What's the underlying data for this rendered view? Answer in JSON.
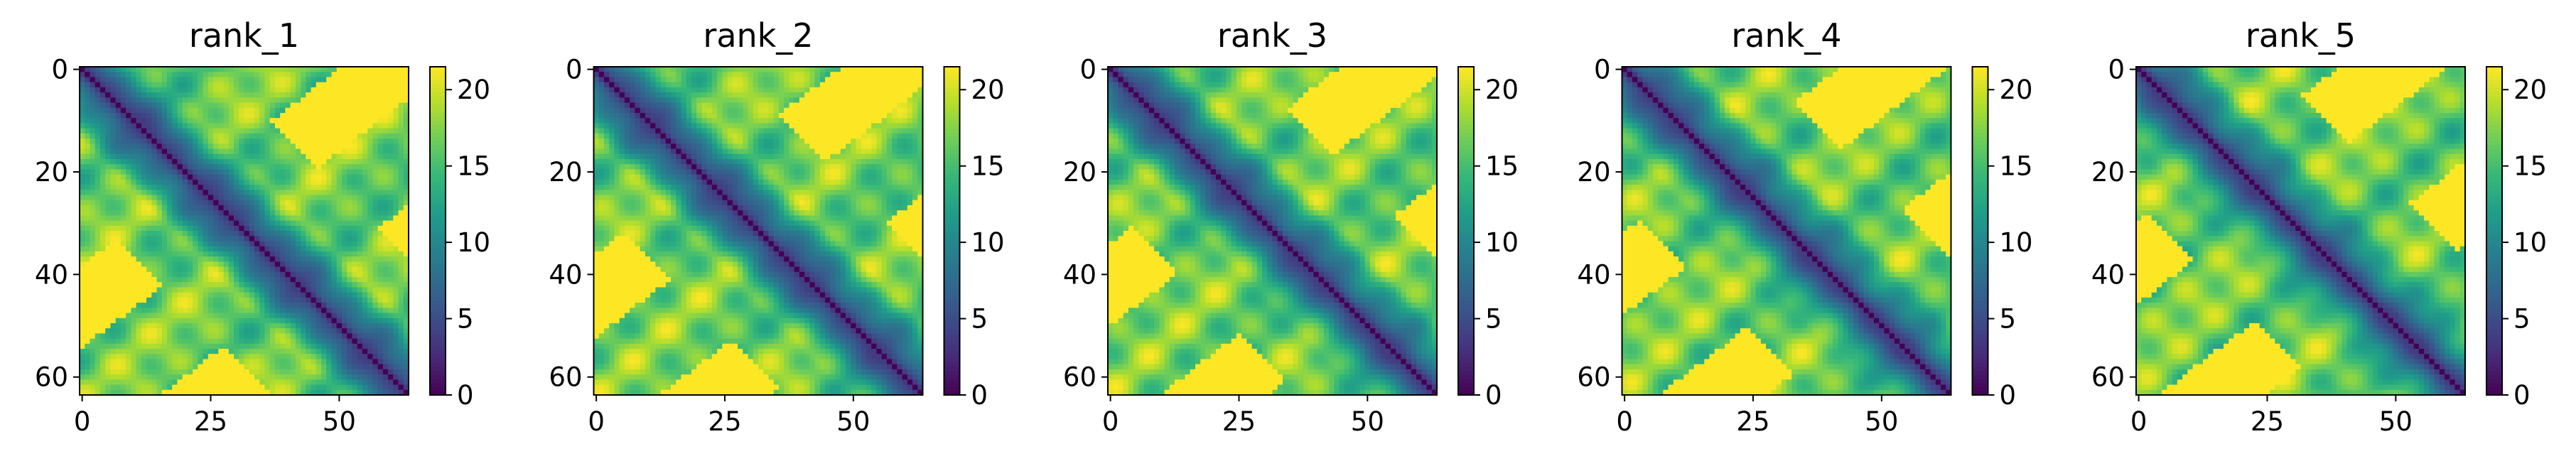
{
  "chart_data": [
    {
      "type": "heatmap",
      "title": "rank_1",
      "matrix_size": 64,
      "x_ticks": [
        "0",
        "25",
        "50"
      ],
      "y_ticks": [
        "0",
        "20",
        "40",
        "60"
      ],
      "colorbar": {
        "colormap": "viridis",
        "range": [
          0,
          21.5
        ],
        "ticks": [
          "0",
          "5",
          "10",
          "15",
          "20"
        ]
      }
    },
    {
      "type": "heatmap",
      "title": "rank_2",
      "matrix_size": 64,
      "x_ticks": [
        "0",
        "25",
        "50"
      ],
      "y_ticks": [
        "0",
        "20",
        "40",
        "60"
      ],
      "colorbar": {
        "colormap": "viridis",
        "range": [
          0,
          21.5
        ],
        "ticks": [
          "0",
          "5",
          "10",
          "15",
          "20"
        ]
      }
    },
    {
      "type": "heatmap",
      "title": "rank_3",
      "matrix_size": 64,
      "x_ticks": [
        "0",
        "25",
        "50"
      ],
      "y_ticks": [
        "0",
        "20",
        "40",
        "60"
      ],
      "colorbar": {
        "colormap": "viridis",
        "range": [
          0,
          21.5
        ],
        "ticks": [
          "0",
          "5",
          "10",
          "15",
          "20"
        ]
      }
    },
    {
      "type": "heatmap",
      "title": "rank_4",
      "matrix_size": 64,
      "x_ticks": [
        "0",
        "25",
        "50"
      ],
      "y_ticks": [
        "0",
        "20",
        "40",
        "60"
      ],
      "colorbar": {
        "colormap": "viridis",
        "range": [
          0,
          21.5
        ],
        "ticks": [
          "0",
          "5",
          "10",
          "15",
          "20"
        ]
      }
    },
    {
      "type": "heatmap",
      "title": "rank_5",
      "matrix_size": 64,
      "x_ticks": [
        "0",
        "25",
        "50"
      ],
      "y_ticks": [
        "0",
        "20",
        "40",
        "60"
      ],
      "colorbar": {
        "colormap": "viridis",
        "range": [
          0,
          21.5
        ],
        "ticks": [
          "0",
          "5",
          "10",
          "15",
          "20"
        ]
      }
    }
  ]
}
